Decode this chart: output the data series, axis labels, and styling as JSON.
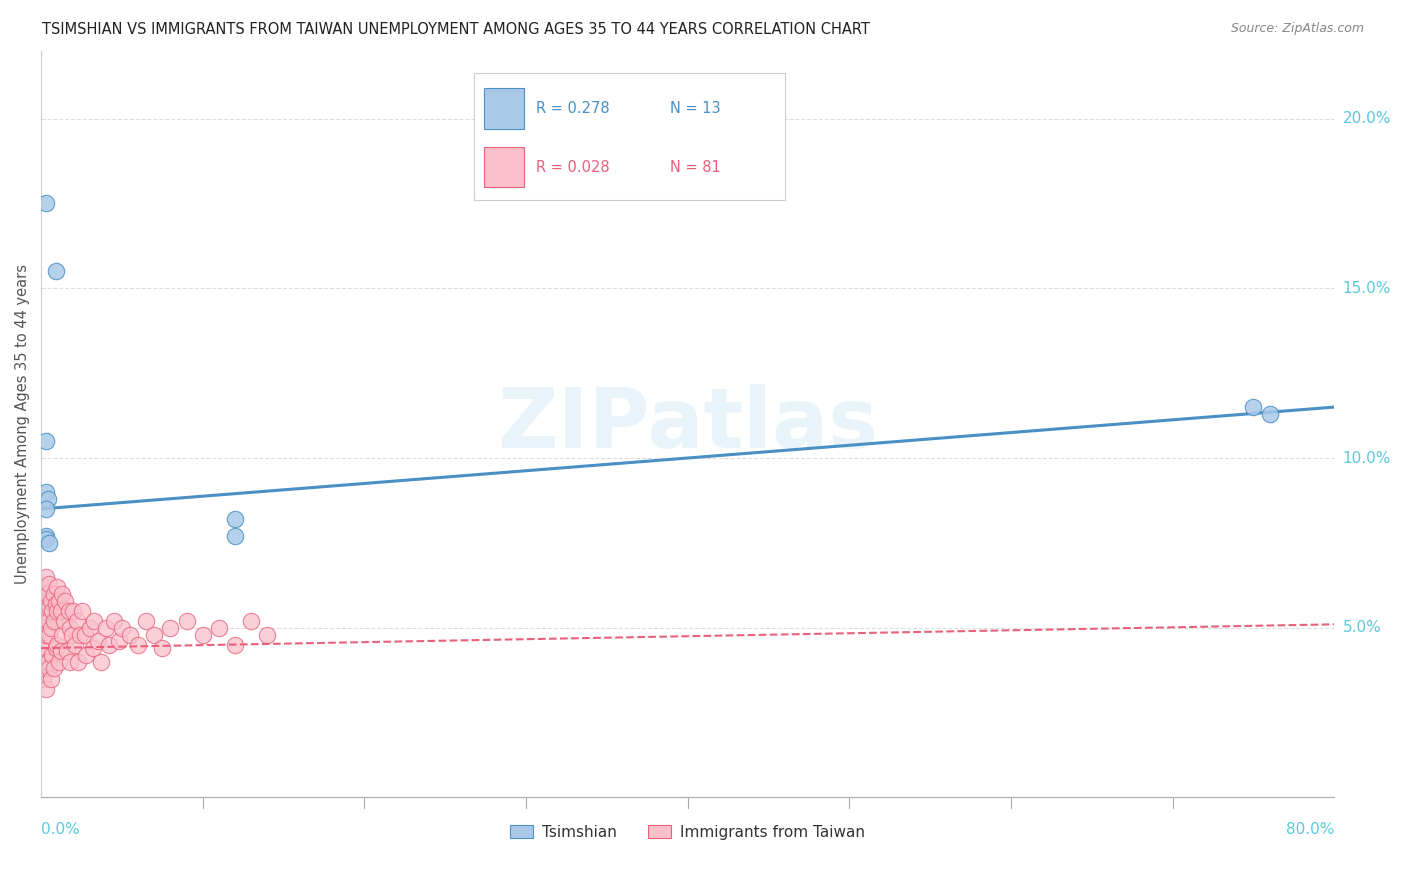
{
  "title": "TSIMSHIAN VS IMMIGRANTS FROM TAIWAN UNEMPLOYMENT AMONG AGES 35 TO 44 YEARS CORRELATION CHART",
  "source": "Source: ZipAtlas.com",
  "ylabel": "Unemployment Among Ages 35 to 44 years",
  "xlim": [
    0.0,
    0.8
  ],
  "ylim": [
    0.0,
    0.22
  ],
  "blue_color": "#aac9e8",
  "pink_color": "#f9c0cc",
  "blue_line_color": "#4a90c4",
  "pink_line_color": "#e8607a",
  "background_color": "#ffffff",
  "grid_color": "#dddddd",
  "right_axis_color": "#5bc8dc",
  "legend_blue_r": "R = 0.278",
  "legend_blue_n": "N = 13",
  "legend_pink_r": "R = 0.028",
  "legend_pink_n": "N = 81",
  "legend_label_blue": "Tsimshian",
  "legend_label_pink": "Immigrants from Taiwan",
  "watermark": "ZIPatlas",
  "tsimshian_x": [
    0.003,
    0.009,
    0.003,
    0.003,
    0.004,
    0.003,
    0.003,
    0.003,
    0.005,
    0.12,
    0.12,
    0.75,
    0.76
  ],
  "tsimshian_y": [
    0.175,
    0.155,
    0.105,
    0.09,
    0.088,
    0.085,
    0.077,
    0.076,
    0.075,
    0.082,
    0.077,
    0.115,
    0.113
  ],
  "taiwan_x": [
    0.0,
    0.0,
    0.001,
    0.001,
    0.001,
    0.001,
    0.001,
    0.002,
    0.002,
    0.002,
    0.002,
    0.002,
    0.003,
    0.003,
    0.003,
    0.003,
    0.003,
    0.003,
    0.004,
    0.004,
    0.004,
    0.005,
    0.005,
    0.005,
    0.005,
    0.006,
    0.006,
    0.006,
    0.007,
    0.007,
    0.008,
    0.008,
    0.008,
    0.009,
    0.009,
    0.01,
    0.01,
    0.01,
    0.011,
    0.011,
    0.012,
    0.012,
    0.013,
    0.013,
    0.014,
    0.015,
    0.016,
    0.017,
    0.018,
    0.018,
    0.019,
    0.02,
    0.021,
    0.022,
    0.023,
    0.024,
    0.025,
    0.027,
    0.028,
    0.03,
    0.032,
    0.033,
    0.035,
    0.037,
    0.04,
    0.042,
    0.045,
    0.048,
    0.05,
    0.055,
    0.06,
    0.065,
    0.07,
    0.075,
    0.08,
    0.09,
    0.1,
    0.11,
    0.12,
    0.13,
    0.14
  ],
  "taiwan_y": [
    0.06,
    0.045,
    0.058,
    0.052,
    0.048,
    0.042,
    0.035,
    0.062,
    0.055,
    0.05,
    0.044,
    0.038,
    0.065,
    0.058,
    0.053,
    0.048,
    0.04,
    0.032,
    0.06,
    0.052,
    0.04,
    0.063,
    0.056,
    0.048,
    0.038,
    0.058,
    0.05,
    0.035,
    0.055,
    0.042,
    0.06,
    0.052,
    0.038,
    0.057,
    0.044,
    0.062,
    0.055,
    0.045,
    0.058,
    0.04,
    0.055,
    0.043,
    0.06,
    0.048,
    0.052,
    0.058,
    0.043,
    0.055,
    0.05,
    0.04,
    0.048,
    0.055,
    0.045,
    0.052,
    0.04,
    0.048,
    0.055,
    0.048,
    0.042,
    0.05,
    0.044,
    0.052,
    0.046,
    0.04,
    0.05,
    0.045,
    0.052,
    0.046,
    0.05,
    0.048,
    0.045,
    0.052,
    0.048,
    0.044,
    0.05,
    0.052,
    0.048,
    0.05,
    0.045,
    0.052,
    0.048
  ],
  "blue_line_x0": 0.0,
  "blue_line_y0": 0.085,
  "blue_line_x1": 0.8,
  "blue_line_y1": 0.115,
  "pink_line_x0": 0.0,
  "pink_line_y0": 0.044,
  "pink_line_x1": 0.8,
  "pink_line_y1": 0.051
}
